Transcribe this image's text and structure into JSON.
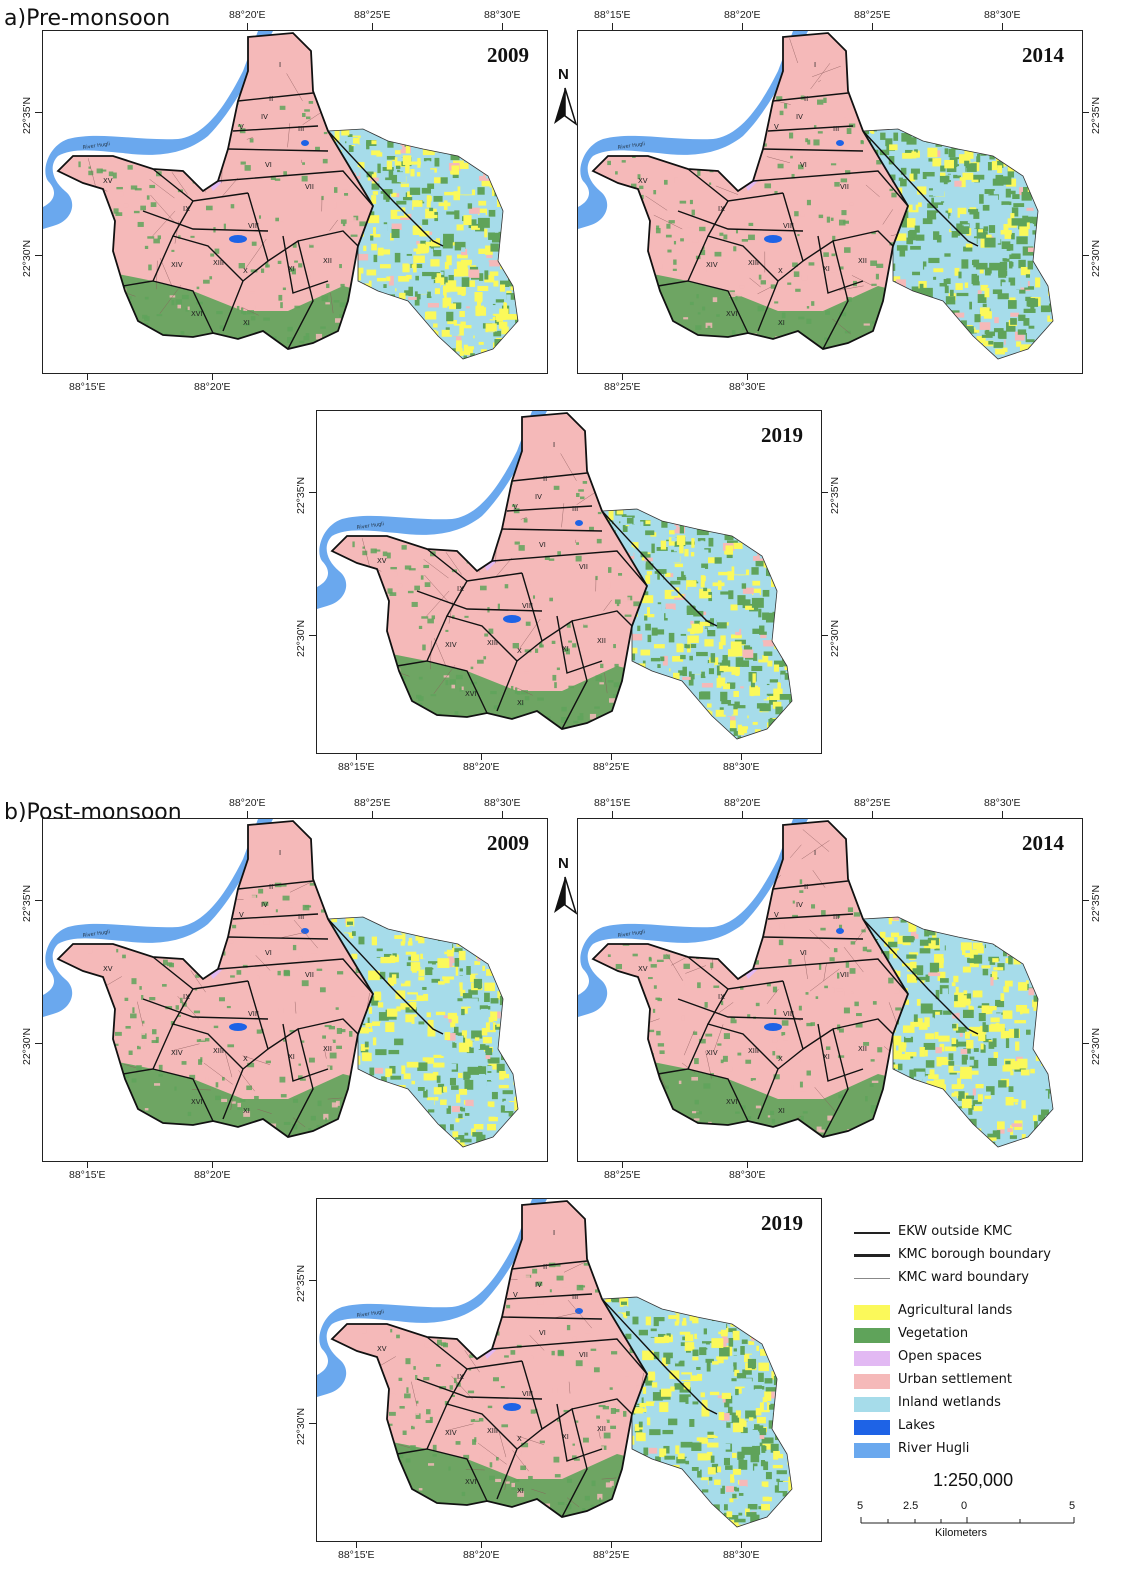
{
  "sections": {
    "pre": "a)Pre-monsoon",
    "post": "b)Post-monsoon"
  },
  "panels": [
    {
      "id": "pre-2009",
      "year": "2009",
      "ticks_top": [
        "88°20'E",
        "88°25'E",
        "88°30'E"
      ],
      "ticks_bottom": [
        "88°15'E",
        "88°20'E"
      ],
      "ticks_left": [
        "22°35'N",
        "22°30'N"
      ],
      "ticks_right": []
    },
    {
      "id": "pre-2014",
      "year": "2014",
      "ticks_top": [
        "88°15'E",
        "88°20'E",
        "88°25'E",
        "88°30'E"
      ],
      "ticks_bottom": [
        "88°25'E",
        "88°30'E"
      ],
      "ticks_left": [],
      "ticks_right": [
        "22°35'N",
        "22°30'N"
      ]
    },
    {
      "id": "pre-2019",
      "year": "2019",
      "ticks_top": [],
      "ticks_bottom": [
        "88°15'E",
        "88°20'E",
        "88°25'E",
        "88°30'E"
      ],
      "ticks_left": [
        "22°35'N",
        "22°30'N"
      ],
      "ticks_right": [
        "22°35'N",
        "22°30'N"
      ]
    },
    {
      "id": "post-2009",
      "year": "2009",
      "ticks_top": [
        "88°20'E",
        "88°25'E",
        "88°30'E"
      ],
      "ticks_bottom": [
        "88°15'E",
        "88°20'E"
      ],
      "ticks_left": [
        "22°35'N",
        "22°30'N"
      ],
      "ticks_right": []
    },
    {
      "id": "post-2014",
      "year": "2014",
      "ticks_top": [
        "88°15'E",
        "88°20'E",
        "88°25'E",
        "88°30'E"
      ],
      "ticks_bottom": [
        "88°25'E",
        "88°30'E"
      ],
      "ticks_left": [],
      "ticks_right": [
        "22°35'N",
        "22°30'N"
      ]
    },
    {
      "id": "post-2019",
      "year": "2019",
      "ticks_top": [],
      "ticks_bottom": [
        "88°15'E",
        "88°20'E",
        "88°25'E",
        "88°30'E"
      ],
      "ticks_left": [
        "22°35'N",
        "22°30'N"
      ],
      "ticks_right": []
    }
  ],
  "north_letter": "N",
  "boroughs": [
    "I",
    "II",
    "III",
    "IV",
    "V",
    "VI",
    "VII",
    "VIII",
    "IX",
    "X",
    "XI",
    "XII",
    "XIII",
    "XIV",
    "XV",
    "XVI"
  ],
  "river_label": "River Hugli",
  "legend": {
    "lines": [
      {
        "label": "EKW outside KMC",
        "weight": "thin"
      },
      {
        "label": "KMC borough boundary",
        "weight": "thick"
      },
      {
        "label": "KMC ward boundary",
        "weight": "hair"
      }
    ],
    "classes": [
      {
        "label": "Agricultural lands",
        "color": "#fbf95a"
      },
      {
        "label": "Vegetation",
        "color": "#5fa35a"
      },
      {
        "label": "Open spaces",
        "color": "#e2b9f3"
      },
      {
        "label": "Urban settlement",
        "color": "#f5b9b9"
      },
      {
        "label": "Inland wetlands",
        "color": "#a6dcea"
      },
      {
        "label": "Lakes",
        "color": "#1e63e6"
      },
      {
        "label": "River Hugli",
        "color": "#6aa8ee"
      }
    ]
  },
  "scale": {
    "ratio": "1:250,000",
    "labels": [
      "5",
      "2.5",
      "0",
      "5"
    ],
    "unit": "Kilometers"
  }
}
